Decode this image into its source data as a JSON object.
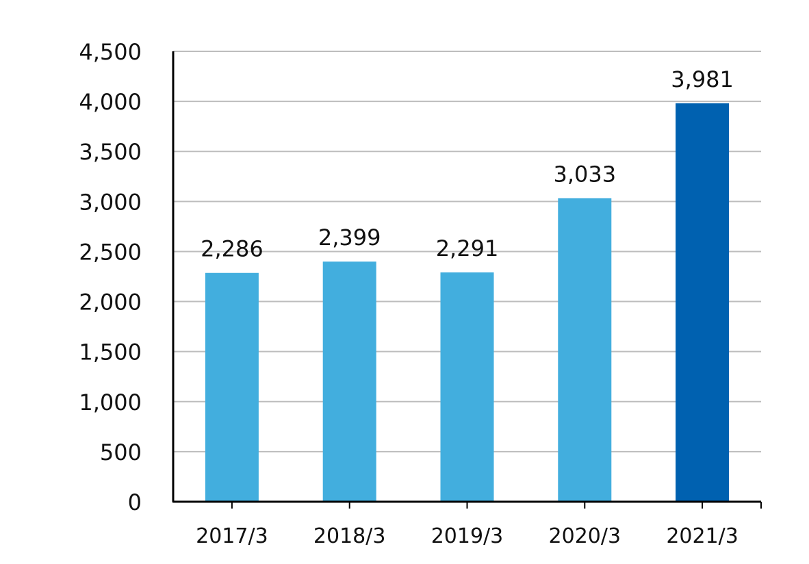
{
  "chart_data": {
    "type": "bar",
    "title": "",
    "xlabel": "",
    "ylabel": "",
    "categories": [
      "2017/3",
      "2018/3",
      "2019/3",
      "2020/3",
      "2021/3"
    ],
    "values": [
      2286,
      2399,
      2291,
      3033,
      3981
    ],
    "data_labels": [
      "2,286",
      "2,399",
      "2,291",
      "3,033",
      "3,981"
    ],
    "ylim": [
      0,
      4500
    ],
    "yticks": [
      0,
      500,
      1000,
      1500,
      2000,
      2500,
      3000,
      3500,
      4000,
      4500
    ],
    "ytick_labels": [
      "0",
      "500",
      "1,000",
      "1,500",
      "2,000",
      "2,500",
      "3,000",
      "3,500",
      "4,000",
      "4,500"
    ],
    "grid": true,
    "colors": {
      "default_bar": "#42aede",
      "highlight_bar": "#0061b0",
      "highlight_category": "2021/3"
    }
  }
}
